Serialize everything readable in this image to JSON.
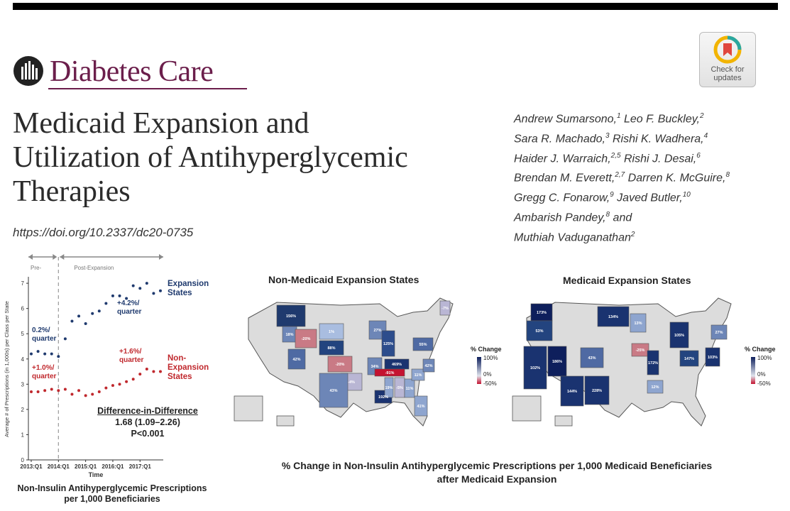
{
  "journal": {
    "name": "Diabetes Care",
    "badge_text": "Check for updates"
  },
  "article": {
    "title_lines": [
      "Medicaid Expansion and",
      "Utilization of Antihyperglycemic",
      "Therapies"
    ],
    "doi": "https://doi.org/10.2337/dc20-0735",
    "authors_lines": [
      "Andrew Sumarsono,|1| Leo F. Buckley,|2|",
      "Sara R. Machado,|3| Rishi K. Wadhera,|4|",
      "Haider J. Warraich,|2,5| Rishi J. Desai,|6|",
      "Brendan M. Everett,|2,7| Darren K. McGuire,|8|",
      "Gregg C. Fonarow,|9| Javed Butler,|10|",
      "Ambarish Pandey,|8| and",
      "Muthiah Vaduganathan|2|"
    ]
  },
  "chart_data": [
    {
      "type": "scatter",
      "title": "Non-Insulin Antihyperglycemic Prescriptions per 1,000 Beneficiaries",
      "xlabel": "Time",
      "ylabel": "Average # of Prescriptions (in 1,000s) per Class per State",
      "x_ticks": [
        "2013:Q1",
        "2014:Q1",
        "2015:Q1",
        "2016:Q1",
        "2017:Q1"
      ],
      "y_ticks": [
        0,
        1,
        2,
        3,
        4,
        5,
        6,
        7
      ],
      "ylim": [
        0,
        7.2
      ],
      "period_labels": [
        "Pre-",
        "Post-Expansion"
      ],
      "expansion_start": "2014:Q1",
      "series": [
        {
          "name": "Expansion States",
          "color": "#1f3a6e",
          "values": [
            4.2,
            4.3,
            4.2,
            4.2,
            4.1,
            4.8,
            5.5,
            5.7,
            5.4,
            5.8,
            5.9,
            6.2,
            6.5,
            6.5,
            6.4,
            6.9,
            6.8,
            7.0,
            6.6,
            6.7
          ]
        },
        {
          "name": "Non-Expansion States",
          "color": "#c0282d",
          "values": [
            2.7,
            2.7,
            2.75,
            2.8,
            2.75,
            2.8,
            2.6,
            2.75,
            2.55,
            2.6,
            2.7,
            2.85,
            2.95,
            3.0,
            3.1,
            3.2,
            3.4,
            3.6,
            3.5,
            3.5
          ]
        }
      ],
      "annotations": {
        "exp_pre": [
          "0.2%/",
          "quarter"
        ],
        "exp_post": [
          "+4.2%/",
          "quarter"
        ],
        "non_pre": [
          "+1.0%/",
          "quarter"
        ],
        "non_post": [
          "+1.6%/",
          "quarter"
        ],
        "exp_label": [
          "Expansion",
          "States"
        ],
        "non_label": [
          "Non-",
          "Expansion",
          "States"
        ]
      },
      "did": {
        "heading": "Difference-in-Difference",
        "estimate": "1.68 (1.09–2.26)",
        "p": "P<0.001"
      }
    },
    {
      "type": "map",
      "title": "Non-Medicaid Expansion States",
      "labels": [
        "156%",
        "18%",
        "1%",
        "-20%",
        "42%",
        "88%",
        "27%",
        "-7%",
        "-20%",
        "125%",
        "55%",
        "34%",
        "469%",
        "-91%",
        "-4%",
        "43%",
        "192%",
        "19%",
        "-5%",
        "11%",
        "11%",
        "42%",
        "41%"
      ]
    },
    {
      "type": "map",
      "title": "Medicaid Expansion States",
      "labels": [
        "173%",
        "53%",
        "134%",
        "13%",
        "27%",
        "105%",
        "186%",
        "102%",
        "43%",
        "-25%",
        "172%",
        "147%",
        "103%",
        "144%",
        "228%",
        "12%"
      ]
    }
  ],
  "colorbar": {
    "title": "% Change",
    "ticks": [
      "100%",
      "0%",
      "-50%"
    ],
    "top": "#0e1f5c",
    "mid": "#dfe3ec",
    "bottom": "#c41230"
  },
  "caption": {
    "line1": "% Change in Non-Insulin Antihyperglycemic Prescriptions per 1,000 Medicaid Beneficiaries",
    "line2": "after Medicaid Expansion"
  }
}
